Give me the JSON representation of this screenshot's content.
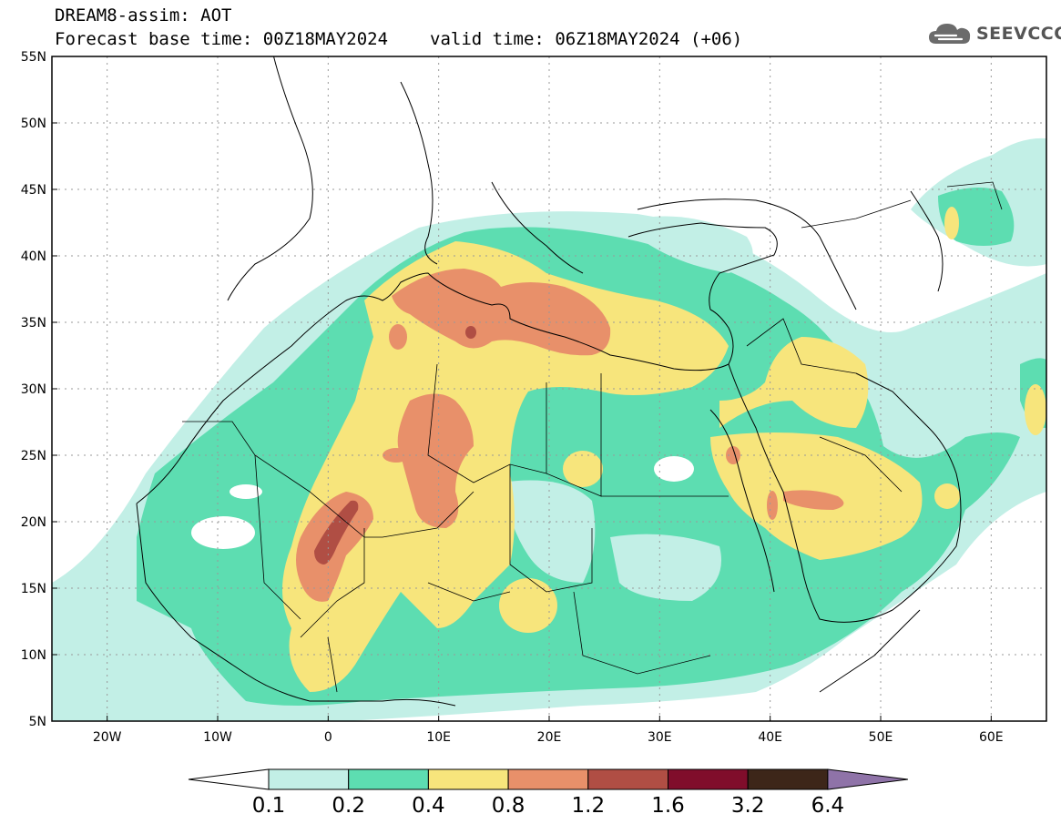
{
  "header": {
    "line1": "DREAM8-assim: AOT",
    "base": "Forecast base time: 00Z18MAY2024",
    "valid": "valid time: 06Z18MAY2024 (+06)"
  },
  "logo": {
    "text": "SEEVCCC",
    "icon": "cloud-icon"
  },
  "axes": {
    "lon_range": [
      -25,
      65
    ],
    "lat_range": [
      5,
      55
    ],
    "x_ticks": [
      "20W",
      "10W",
      "0",
      "10E",
      "20E",
      "30E",
      "40E",
      "50E",
      "60E"
    ],
    "y_ticks": [
      "55N",
      "50N",
      "45N",
      "40N",
      "35N",
      "30N",
      "25N",
      "20N",
      "15N",
      "10N",
      "5N"
    ],
    "grid": "dotted"
  },
  "legend": {
    "labels": [
      "0.1",
      "0.2",
      "0.4",
      "0.8",
      "1.2",
      "1.6",
      "3.2",
      "6.4"
    ],
    "colors": [
      "#ffffff",
      "#c2efe6",
      "#5dddb1",
      "#f7e57c",
      "#e8906a",
      "#b04e44",
      "#800d2b",
      "#3d2619",
      "#8f73a8"
    ]
  }
}
